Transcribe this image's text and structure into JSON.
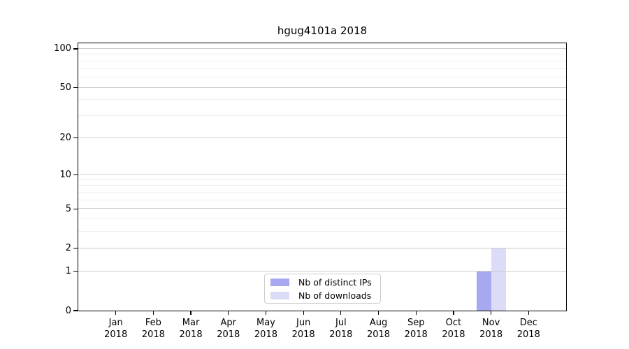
{
  "chart_data": {
    "type": "bar",
    "title": "hgug4101a 2018",
    "categories": [
      "Jan",
      "Feb",
      "Mar",
      "Apr",
      "May",
      "Jun",
      "Jul",
      "Aug",
      "Sep",
      "Oct",
      "Nov",
      "Dec"
    ],
    "category_year": "2018",
    "series": [
      {
        "key": "distinct-ips",
        "name": "Nb of distinct IPs",
        "color": "#a8a8f0",
        "values": [
          0,
          0,
          0,
          0,
          0,
          0,
          0,
          0,
          0,
          0,
          1,
          0
        ]
      },
      {
        "key": "downloads",
        "name": "Nb of downloads",
        "color": "#dcdcf8",
        "values": [
          0,
          0,
          0,
          0,
          0,
          0,
          0,
          0,
          0,
          0,
          2,
          0
        ]
      }
    ],
    "xlabel": "",
    "ylabel": "",
    "yscale": "log1p",
    "major_yticks": [
      0,
      1,
      2,
      5,
      10,
      20,
      50,
      100
    ],
    "minor_yticks": [
      3,
      4,
      6,
      7,
      8,
      9,
      30,
      40,
      60,
      70,
      80,
      90
    ],
    "ylim": [
      0,
      110.4
    ],
    "grid": true,
    "legend_position": "inside-lower-center"
  },
  "colors": {
    "grid_major": "#cccccc",
    "grid_minor": "#efefef",
    "axis": "#000000",
    "background": "#ffffff",
    "legend_border": "#cccccc"
  }
}
